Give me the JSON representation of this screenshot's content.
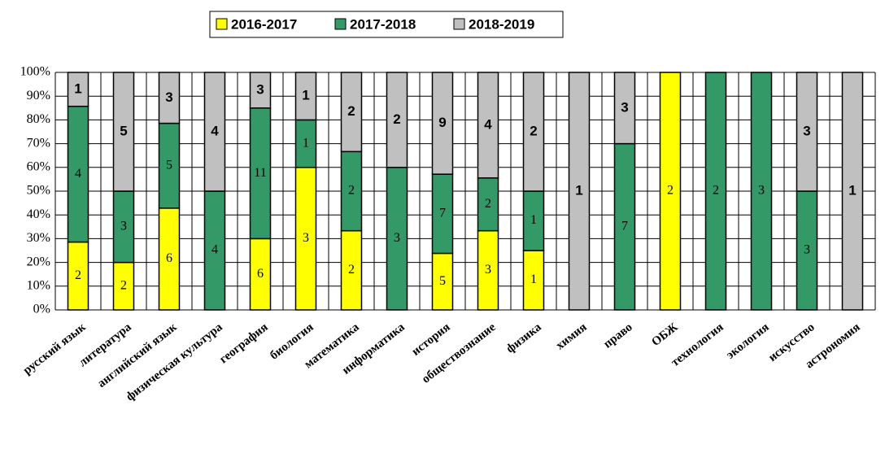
{
  "chart_data": {
    "type": "bar",
    "stacking": "percent",
    "categories": [
      "русский язык",
      "литература",
      "английский язык",
      "физическая культура",
      "география",
      "биология",
      "математика",
      "информатика",
      "история",
      "обществознание",
      "физика",
      "химия",
      "право",
      "ОБЖ",
      "технология",
      "экология",
      "искусство",
      "астрономия"
    ],
    "series": [
      {
        "name": "2016-2017",
        "color": "#ffff00",
        "values": [
          2,
          2,
          6,
          null,
          6,
          3,
          2,
          null,
          5,
          3,
          1,
          null,
          null,
          2,
          null,
          null,
          null,
          null
        ]
      },
      {
        "name": "2017-2018",
        "color": "#339966",
        "values": [
          4,
          3,
          5,
          4,
          11,
          1,
          2,
          3,
          7,
          2,
          1,
          null,
          7,
          null,
          2,
          3,
          3,
          null
        ]
      },
      {
        "name": "2018-2019",
        "color": "#c0c0c0",
        "values": [
          1,
          5,
          3,
          4,
          3,
          1,
          2,
          2,
          9,
          4,
          2,
          1,
          3,
          null,
          null,
          null,
          3,
          1
        ]
      }
    ],
    "ylim": [
      0,
      100
    ],
    "yticks": [
      {
        "value": 0,
        "label": "0%"
      },
      {
        "value": 10,
        "label": "10%"
      },
      {
        "value": 20,
        "label": "20%"
      },
      {
        "value": 30,
        "label": "30%"
      },
      {
        "value": 40,
        "label": "40%"
      },
      {
        "value": 50,
        "label": "50%"
      },
      {
        "value": 60,
        "label": "60%"
      },
      {
        "value": 70,
        "label": "70%"
      },
      {
        "value": 80,
        "label": "80%"
      },
      {
        "value": 90,
        "label": "90%"
      },
      {
        "value": 100,
        "label": "100%"
      }
    ],
    "grid": true,
    "legend": "top"
  }
}
